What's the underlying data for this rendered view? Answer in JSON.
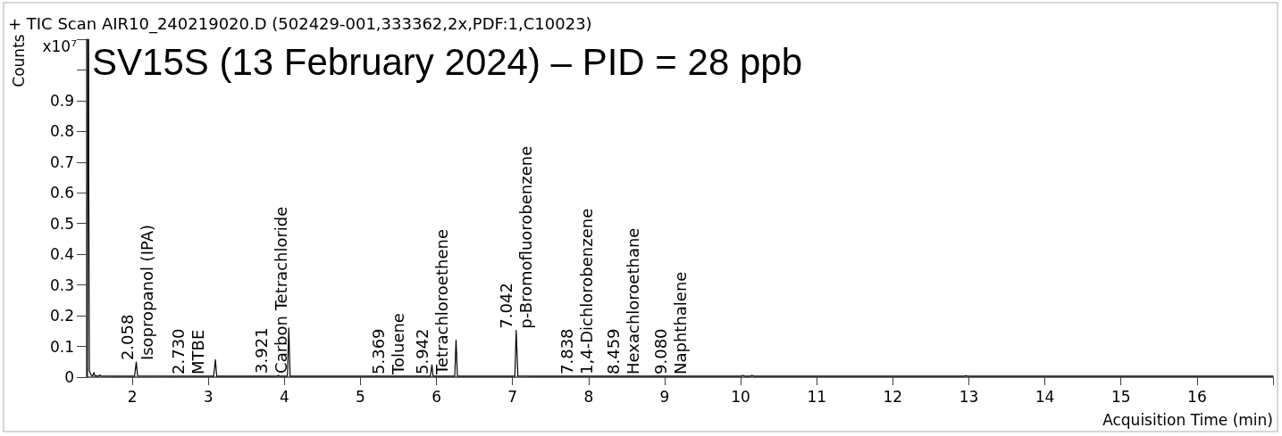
{
  "chart_data": {
    "type": "line",
    "title": "SV15S (13 February 2024) – PID = 28 ppb",
    "subtitle": "+ TIC Scan AIR10_240219020.D (502429-001,333362,2x,PDF:1,C10023)",
    "xlabel": "Acquisition Time (min)",
    "ylabel": "Counts",
    "color": "#000000",
    "marker": "none",
    "x": [
      1.41,
      1.415,
      1.425,
      1.428,
      1.435,
      1.46,
      1.48,
      1.495,
      1.51,
      1.56,
      1.575,
      1.59,
      2.03,
      2.052,
      2.07,
      3.07,
      3.093,
      3.11,
      3.9,
      3.921,
      3.94,
      4.04,
      4.058,
      4.075,
      5.92,
      5.94,
      5.955,
      6.24,
      6.257,
      6.275,
      7.03,
      7.048,
      7.07,
      7.3,
      10.0,
      10.03,
      10.06,
      10.12,
      10.15,
      10.18,
      12.93,
      12.96,
      12.99,
      17.0
    ],
    "values": [
      0.003,
      1.1,
      1.1,
      0.62,
      0.02,
      0.006,
      0.004,
      0.015,
      0.004,
      0.004,
      0.007,
      0.004,
      0.003,
      0.049,
      0.004,
      0.003,
      0.057,
      0.003,
      0.003,
      0.006,
      0.003,
      0.003,
      0.16,
      0.003,
      0.003,
      0.04,
      0.003,
      0.003,
      0.121,
      0.003,
      0.003,
      0.152,
      0.004,
      0.003,
      0.003,
      0.006,
      0.003,
      0.003,
      0.006,
      0.003,
      0.003,
      0.005,
      0.003,
      0.003
    ],
    "xlim": [
      1.4,
      17
    ],
    "xticks": [
      2,
      3,
      4,
      5,
      6,
      7,
      8,
      9,
      10,
      11,
      12,
      13,
      14,
      15,
      16,
      {
        "value": 17,
        "label": null
      }
    ],
    "ylim": [
      0,
      1.1
    ],
    "yticks": [
      0,
      0.1,
      0.2,
      0.3,
      0.4,
      0.5,
      0.6,
      0.7,
      0.8,
      0.9,
      {
        "value": 1,
        "label": null
      },
      {
        "value": 1.1,
        "label": null
      }
    ],
    "annotations": [
      "x10⁷",
      {
        "text": "2.058\nIsopropanol (IPA)",
        "x": 2.058,
        "y": 0.049
      },
      {
        "text": "2.730\nMTBE",
        "x": 2.73,
        "y": 0.003
      },
      {
        "text": "3.921\nCarbon Tetrachloride",
        "x": 3.921,
        "y": 0.006
      },
      {
        "text": "5.369\nToluene",
        "x": 5.369,
        "y": 0.003
      },
      {
        "text": "5.942\nTetrachloroethene",
        "x": 5.942,
        "y": 0.003
      },
      {
        "text": "7.042\np-Bromofluorobenzene",
        "x": 7.042,
        "y": 0.152
      },
      {
        "text": "7.838\n1,4-Dichlorobenzene",
        "x": 7.838,
        "y": 0.003
      },
      {
        "text": "8.459\nHexachloroethane",
        "x": 8.459,
        "y": 0.003
      },
      {
        "text": "9.080\nNaphthalene",
        "x": 9.08,
        "y": 0.003
      }
    ]
  }
}
